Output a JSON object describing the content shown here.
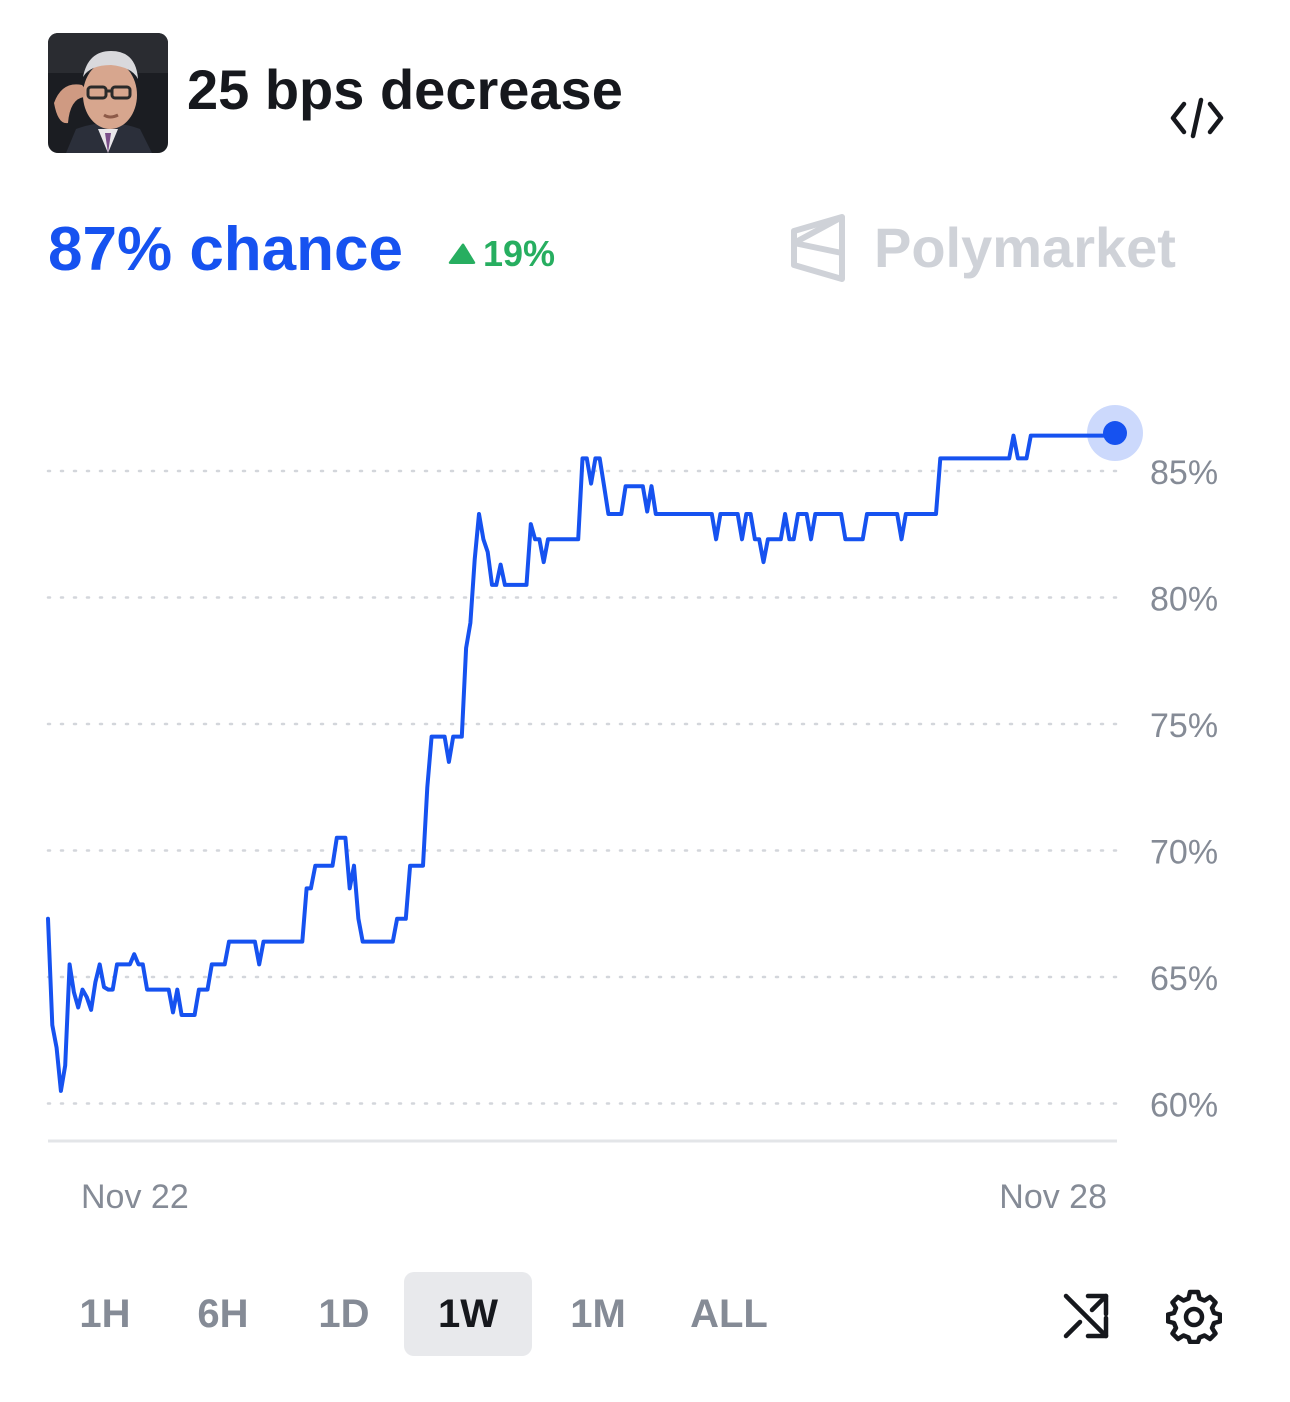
{
  "market": {
    "title": "25 bps decrease",
    "avatar_icon": "portrait-avatar",
    "embed_icon": "code-embed-icon"
  },
  "summary": {
    "chance_text": "87% chance",
    "chance_color": "#1652f0",
    "delta_text": "19%",
    "delta_direction": "up",
    "delta_color": "#27ae60"
  },
  "brand": {
    "name": "Polymarket",
    "logo_icon": "polymarket-logo-icon"
  },
  "chart_data": {
    "type": "line",
    "title": "",
    "xlabel": "",
    "ylabel": "",
    "x_tick_labels": [
      "Nov 22",
      "Nov 28"
    ],
    "y_ticks": [
      60,
      65,
      70,
      75,
      80,
      85
    ],
    "y_tick_labels": [
      "60%",
      "65%",
      "70%",
      "75%",
      "80%",
      "85%"
    ],
    "ylim": [
      59,
      88
    ],
    "xlim": [
      "Nov 21 20:30",
      "Nov 28 23:00"
    ],
    "grid": "dotted-horizontal",
    "legend": "none",
    "line_color": "#1652f0",
    "series": [
      {
        "values": [
          67.3,
          63.1,
          62.2,
          60.5,
          61.5,
          65.5,
          64.4,
          63.8,
          64.5,
          64.2,
          63.7,
          64.8,
          65.5,
          64.6,
          64.5,
          64.5,
          65.5,
          65.5,
          65.5,
          65.5,
          65.9,
          65.5,
          65.5,
          64.5,
          64.5,
          64.5,
          64.5,
          64.5,
          64.5,
          63.6,
          64.5,
          63.5,
          63.5,
          63.5,
          63.5,
          64.5,
          64.5,
          64.5,
          65.5,
          65.5,
          65.5,
          65.5,
          66.4,
          66.4,
          66.4,
          66.4,
          66.4,
          66.4,
          66.4,
          65.5,
          66.4,
          66.4,
          66.4,
          66.4,
          66.4,
          66.4,
          66.4,
          66.4,
          66.4,
          66.4,
          68.5,
          68.5,
          69.4,
          69.4,
          69.4,
          69.4,
          69.4,
          70.5,
          70.5,
          70.5,
          68.5,
          69.4,
          67.3,
          66.4,
          66.4,
          66.4,
          66.4,
          66.4,
          66.4,
          66.4,
          66.4,
          67.3,
          67.3,
          67.3,
          69.4,
          69.4,
          69.4,
          69.4,
          72.5,
          74.5,
          74.5,
          74.5,
          74.5,
          73.5,
          74.5,
          74.5,
          74.5,
          78.0,
          79.0,
          81.5,
          83.3,
          82.3,
          81.8,
          80.5,
          80.5,
          81.3,
          80.5,
          80.5,
          80.5,
          80.5,
          80.5,
          80.5,
          82.9,
          82.3,
          82.3,
          81.4,
          82.3,
          82.3,
          82.3,
          82.3,
          82.3,
          82.3,
          82.3,
          82.3,
          85.5,
          85.5,
          84.5,
          85.5,
          85.5,
          84.4,
          83.3,
          83.3,
          83.3,
          83.3,
          84.4,
          84.4,
          84.4,
          84.4,
          84.4,
          83.4,
          84.4,
          83.3,
          83.3,
          83.3,
          83.3,
          83.3,
          83.3,
          83.3,
          83.3,
          83.3,
          83.3,
          83.3,
          83.3,
          83.3,
          83.3,
          82.3,
          83.3,
          83.3,
          83.3,
          83.3,
          83.3,
          82.3,
          83.3,
          83.3,
          82.3,
          82.3,
          81.4,
          82.3,
          82.3,
          82.3,
          82.3,
          83.3,
          82.3,
          82.3,
          83.3,
          83.3,
          83.3,
          82.3,
          83.3,
          83.3,
          83.3,
          83.3,
          83.3,
          83.3,
          83.3,
          82.3,
          82.3,
          82.3,
          82.3,
          82.3,
          83.3,
          83.3,
          83.3,
          83.3,
          83.3,
          83.3,
          83.3,
          83.3,
          82.3,
          83.3,
          83.3,
          83.3,
          83.3,
          83.3,
          83.3,
          83.3,
          83.3,
          85.5,
          85.5,
          85.5,
          85.5,
          85.5,
          85.5,
          85.5,
          85.5,
          85.5,
          85.5,
          85.5,
          85.5,
          85.5,
          85.5,
          85.5,
          85.5,
          85.5,
          86.4,
          85.5,
          85.5,
          85.5,
          86.4,
          86.4,
          86.4,
          86.4,
          86.4,
          86.4,
          86.4,
          86.4,
          86.4,
          86.4,
          86.4,
          86.4,
          86.4,
          86.4,
          86.4,
          86.4,
          86.4,
          86.4,
          86.4,
          86.4,
          86.4
        ]
      }
    ],
    "current_value": 86.5
  },
  "timeframes": {
    "items": [
      {
        "label": "1H",
        "active": false
      },
      {
        "label": "6H",
        "active": false
      },
      {
        "label": "1D",
        "active": false
      },
      {
        "label": "1W",
        "active": true
      },
      {
        "label": "1M",
        "active": false
      },
      {
        "label": "ALL",
        "active": false
      }
    ]
  },
  "tools": {
    "shuffle_icon": "shuffle-icon",
    "settings_icon": "gear-icon"
  }
}
